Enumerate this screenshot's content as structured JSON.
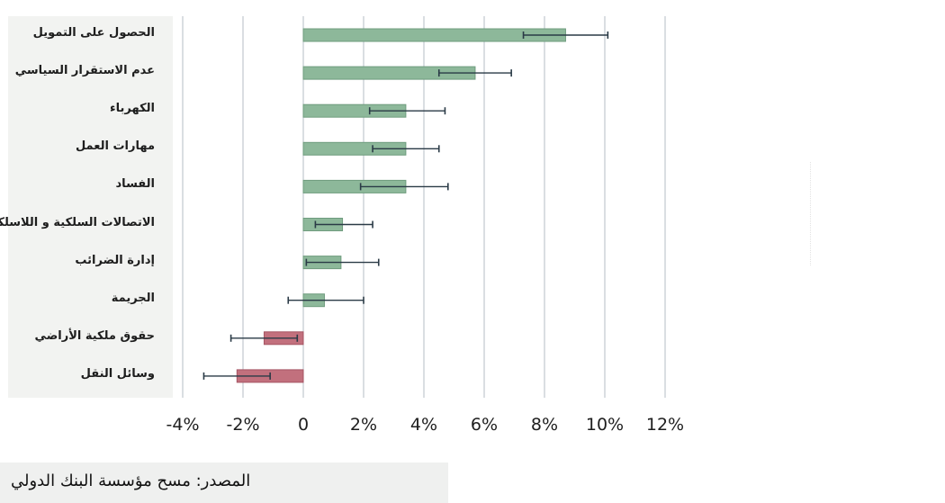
{
  "chart_data": {
    "type": "bar",
    "orientation": "horizontal",
    "categories": [
      "الحصول على التمويل",
      "عدم الاستقرار السياسي",
      "الكهرباء",
      "مهارات العمل",
      "الفساد",
      "الاتصالات السلكية و اللاسلكية",
      "إدارة الضرائب",
      "الجريمة",
      "حقوق ملكية الأراضي",
      "وسائل النقل"
    ],
    "values": [
      8.7,
      5.7,
      3.4,
      3.4,
      3.4,
      1.3,
      1.25,
      0.7,
      -1.3,
      -2.2
    ],
    "error_low": [
      7.3,
      4.5,
      2.2,
      2.3,
      1.9,
      0.4,
      0.1,
      -0.5,
      -2.4,
      -3.3
    ],
    "error_high": [
      10.1,
      6.9,
      4.7,
      4.5,
      4.8,
      2.3,
      2.5,
      2.0,
      -0.2,
      -1.1
    ],
    "colors": {
      "positive": "#8db89a",
      "negative": "#c2707d",
      "error": "#2a3a46",
      "grid": "#b4bcc4"
    },
    "xlim": [
      -4,
      12
    ],
    "xticks": [
      -4,
      -2,
      0,
      2,
      4,
      6,
      8,
      10,
      12
    ],
    "xtick_labels": [
      "-4%",
      "-2%",
      "0",
      "2%",
      "4%",
      "6%",
      "8%",
      "10%",
      "12%"
    ],
    "grid": true
  },
  "source": "المصدر: مسح مؤسسة البنك الدولي"
}
